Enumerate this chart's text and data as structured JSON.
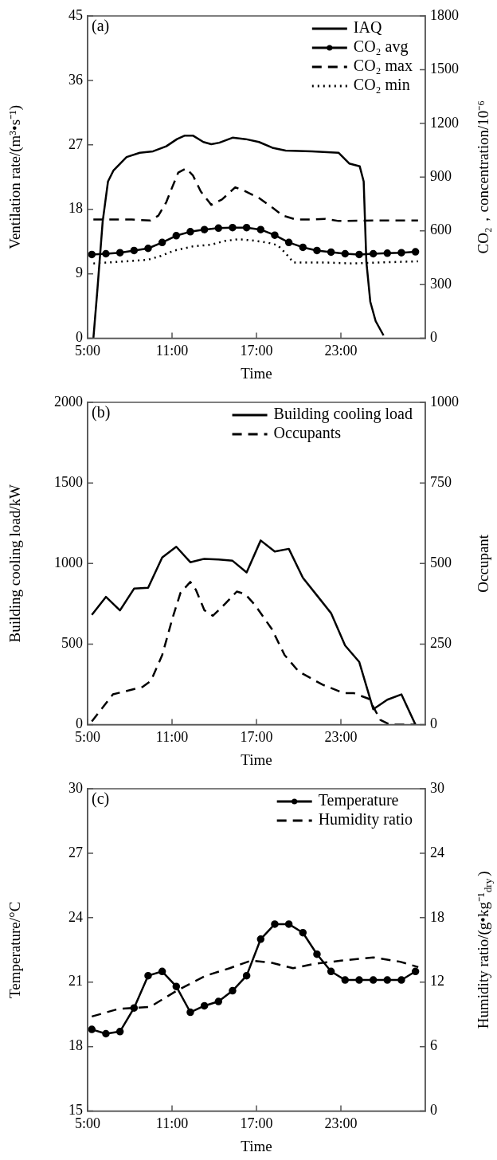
{
  "chart_data": [
    {
      "type": "line",
      "annotations": [
        "(a)"
      ],
      "xlabel": "Time",
      "ylabel": "Ventilation rate/(m³•s⁻¹)",
      "y2label": "CO₂，concentration/10⁻⁶",
      "xlim": [
        5,
        29
      ],
      "xticks": [
        {
          "value": 5,
          "label": "5:00"
        },
        {
          "value": 11,
          "label": "11:00"
        },
        {
          "value": 17,
          "label": "17:00"
        },
        {
          "value": 23,
          "label": "23:00"
        }
      ],
      "ylim": [
        0,
        45
      ],
      "yticks": [
        0,
        9,
        18,
        27,
        36,
        45
      ],
      "y2lim": [
        0,
        1800
      ],
      "y2ticks": [
        0,
        300,
        600,
        900,
        1200,
        1500,
        1800
      ],
      "legend": "top right",
      "grid": false,
      "series": [
        {
          "name": "IAQ",
          "color": "#000000",
          "line_style": "solid",
          "marker": "none",
          "x": [
            5.41,
            5.7,
            6.07,
            6.45,
            6.83,
            7.77,
            8.71,
            9.65,
            10.59,
            11.35,
            11.91,
            12.48,
            13.23,
            13.79,
            14.36,
            15.3,
            16.24,
            17.18,
            18.13,
            19.07,
            20.95,
            22.83,
            23.59,
            24.34,
            24.62,
            24.81,
            25.09,
            25.47,
            26.03
          ],
          "values": [
            0,
            6.9,
            16.3,
            21.9,
            23.4,
            25.3,
            25.9,
            26.1,
            26.8,
            27.8,
            28.3,
            28.3,
            27.4,
            27.1,
            27.3,
            28,
            27.8,
            27.4,
            26.6,
            26.2,
            26.1,
            25.9,
            24.4,
            24,
            21.9,
            10.7,
            5.1,
            2.4,
            0.4
          ]
        },
        {
          "name": "CO₂ avg",
          "color": "#000000",
          "axis": "y2",
          "line_style": "solid",
          "marker": "circle",
          "x": [
            5.3,
            6.3,
            7.3,
            8.3,
            9.3,
            10.3,
            11.3,
            12.3,
            13.3,
            14.3,
            15.3,
            16.3,
            17.3,
            18.3,
            19.3,
            20.3,
            21.3,
            22.3,
            23.3,
            24.3,
            25.3,
            26.3,
            27.3,
            28.3
          ],
          "values": [
            468,
            472,
            478,
            490,
            502,
            535,
            573,
            595,
            607,
            615,
            618,
            618,
            607,
            576,
            535,
            508,
            490,
            481,
            472,
            468,
            472,
            475,
            478,
            483
          ]
        },
        {
          "name": "CO₂ max",
          "color": "#000000",
          "axis": "y2",
          "line_style": "dashed",
          "marker": "none",
          "x": [
            5.41,
            8.14,
            9.46,
            10.03,
            10.59,
            10.97,
            11.44,
            12,
            12.48,
            13.04,
            13.79,
            14.55,
            15.49,
            16.24,
            17.18,
            18.13,
            18.88,
            19.82,
            20.95,
            21.89,
            22.83,
            25.66,
            28.48
          ],
          "values": [
            663,
            663,
            658,
            685,
            760,
            835,
            925,
            948,
            910,
            820,
            745,
            775,
            843,
            820,
            783,
            730,
            685,
            663,
            663,
            667,
            655,
            658,
            658
          ]
        },
        {
          "name": "CO₂ min",
          "color": "#000000",
          "axis": "y2",
          "line_style": "dotted",
          "marker": "none",
          "x": [
            5.41,
            9.27,
            10.21,
            11.16,
            12.48,
            13.79,
            14.73,
            15.68,
            16.62,
            17.75,
            18.5,
            19.07,
            19.63,
            21.89,
            23.77,
            25.66,
            28.48
          ],
          "values": [
            418,
            438,
            460,
            490,
            513,
            523,
            543,
            553,
            547,
            535,
            520,
            475,
            423,
            423,
            418,
            423,
            430
          ]
        }
      ]
    },
    {
      "type": "line",
      "annotations": [
        "(b)"
      ],
      "xlabel": "Time",
      "ylabel": "Building cooling load/kW",
      "y2label": "Occupant",
      "xlim": [
        5,
        29
      ],
      "xticks": [
        {
          "value": 5,
          "label": "5:00"
        },
        {
          "value": 11,
          "label": "11:00"
        },
        {
          "value": 17,
          "label": "17:00"
        },
        {
          "value": 23,
          "label": "23:00"
        }
      ],
      "ylim": [
        0,
        2000
      ],
      "yticks": [
        0,
        500,
        1000,
        1500,
        2000
      ],
      "y2lim": [
        0,
        1000
      ],
      "y2ticks": [
        0,
        250,
        500,
        750,
        1000
      ],
      "legend": "top right",
      "grid": false,
      "series": [
        {
          "name": "Building cooling load",
          "color": "#000000",
          "line_style": "solid",
          "marker": "none",
          "x": [
            5.3,
            6.3,
            7.3,
            8.3,
            9.3,
            10.3,
            11.3,
            12.3,
            13.3,
            14.3,
            15.3,
            16.3,
            17.3,
            18.3,
            19.3,
            20.3,
            21.3,
            22.3,
            23.3,
            24.3,
            25.3,
            26.3,
            27.3,
            28.3
          ],
          "values": [
            681,
            793,
            709,
            844,
            849,
            1037,
            1104,
            1008,
            1029,
            1025,
            1017,
            945,
            1143,
            1074,
            1091,
            911,
            802,
            692,
            491,
            390,
            96,
            155,
            188,
            0
          ]
        },
        {
          "name": "Occupants",
          "color": "#000000",
          "axis": "y2",
          "line_style": "dashed",
          "marker": "none",
          "x": [
            5.3,
            6.8,
            8.9,
            9.5,
            10.3,
            11.05,
            11.6,
            12.3,
            12.7,
            13.3,
            13.9,
            14.8,
            15.6,
            16.2,
            16.9,
            18.1,
            19,
            20,
            21.7,
            23.2,
            23.9,
            25,
            25.8,
            26.5,
            28.3
          ],
          "values": [
            10,
            94,
            117,
            136,
            216,
            333,
            409,
            443,
            418,
            355,
            338,
            376,
            413,
            405,
            371,
            296,
            216,
            165,
            124,
            98,
            98,
            80,
            15,
            0,
            0
          ]
        }
      ]
    },
    {
      "type": "line",
      "annotations": [
        "(c)"
      ],
      "xlabel": "Time",
      "ylabel": "Temperature/°C",
      "y2label": "Humidity ratio/(g•kg⁻¹$_{dry}$)",
      "xlim": [
        5,
        29
      ],
      "xticks": [
        {
          "value": 5,
          "label": "5:00"
        },
        {
          "value": 11,
          "label": "11:00"
        },
        {
          "value": 17,
          "label": "17:00"
        },
        {
          "value": 23,
          "label": "23:00"
        }
      ],
      "ylim": [
        15,
        30
      ],
      "yticks": [
        15,
        18,
        21,
        24,
        27,
        30
      ],
      "y2lim": [
        0,
        30
      ],
      "y2ticks": [
        0,
        6,
        12,
        18,
        24,
        30
      ],
      "legend": "top right",
      "grid": false,
      "series": [
        {
          "name": "Temperature",
          "color": "#000000",
          "line_style": "solid",
          "marker": "circle",
          "x": [
            5.3,
            6.3,
            7.3,
            8.3,
            9.3,
            10.3,
            11.3,
            12.3,
            13.3,
            14.3,
            15.3,
            16.3,
            17.3,
            18.3,
            19.3,
            20.3,
            21.3,
            22.3,
            23.3,
            24.3,
            25.3,
            26.3,
            27.3,
            28.3
          ],
          "values": [
            18.8,
            18.6,
            18.7,
            19.8,
            21.3,
            21.5,
            20.8,
            19.6,
            19.9,
            20.1,
            20.6,
            21.3,
            23,
            23.7,
            23.7,
            23.3,
            22.3,
            21.5,
            21.1,
            21.1,
            21.1,
            21.1,
            21.1,
            21.5
          ]
        },
        {
          "name": "Humidity ratio",
          "color": "#000000",
          "axis": "y2",
          "line_style": "dashed",
          "marker": "none",
          "x": [
            5.3,
            7.16,
            9.44,
            11.33,
            13.4,
            15.1,
            16.6,
            18.1,
            19.6,
            21.1,
            23,
            25.3,
            27.2,
            28.5
          ],
          "values": [
            8.8,
            9.5,
            9.7,
            11.2,
            12.6,
            13.3,
            14,
            13.8,
            13.3,
            13.7,
            14,
            14.3,
            13.9,
            13.4
          ]
        }
      ]
    }
  ]
}
